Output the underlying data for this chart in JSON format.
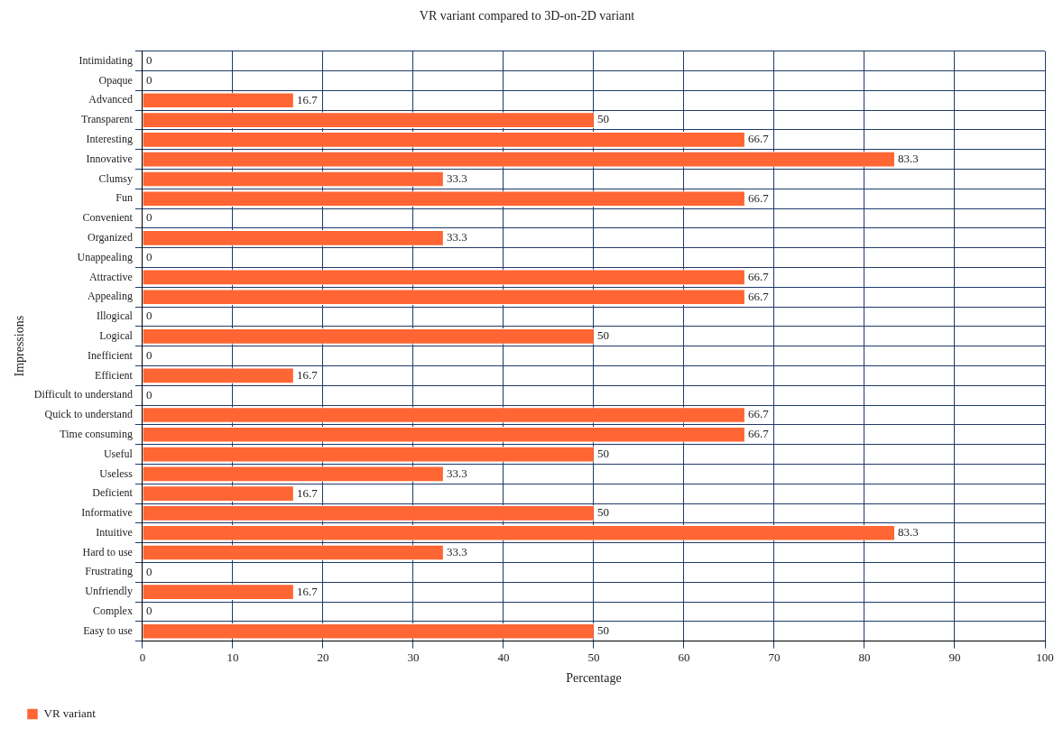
{
  "chart_data": {
    "type": "bar",
    "orientation": "horizontal",
    "title": "VR variant compared to 3D-on-2D variant",
    "xlabel": "Percentage",
    "ylabel": "Impressions",
    "categories": [
      "Intimidating",
      "Opaque",
      "Advanced",
      "Transparent",
      "Interesting",
      "Innovative",
      "Clumsy",
      "Fun",
      "Convenient",
      "Organized",
      "Unappealing",
      "Attractive",
      "Appealing",
      "Illogical",
      "Logical",
      "Inefficient",
      "Efficient",
      "Difficult to understand",
      "Quick to understand",
      "Time consuming",
      "Useful",
      "Useless",
      "Deficient",
      "Informative",
      "Intuitive",
      "Hard to use",
      "Frustrating",
      "Unfriendly",
      "Complex",
      "Easy to use"
    ],
    "series": [
      {
        "name": "VR variant",
        "color": "#ff6633",
        "values": [
          0,
          0,
          16.7,
          50,
          66.7,
          83.3,
          33.3,
          66.7,
          0,
          33.3,
          0,
          66.7,
          66.7,
          0,
          50,
          0,
          16.7,
          0,
          66.7,
          66.7,
          50,
          33.3,
          16.7,
          50,
          83.3,
          33.3,
          0,
          16.7,
          0,
          50
        ]
      }
    ],
    "xlim": [
      0,
      100
    ],
    "xticks": [
      0,
      10,
      20,
      30,
      40,
      50,
      60,
      70,
      80,
      90,
      100
    ],
    "grid": true,
    "legend": "bottom left",
    "data_labels": true
  }
}
